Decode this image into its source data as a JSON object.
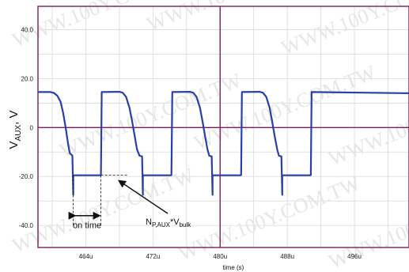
{
  "chart_data": {
    "type": "line",
    "xlabel": "time (s)",
    "ylabel": "VAUX, V",
    "ylabel_main": "V",
    "ylabel_sub": "AUX",
    "ylabel_unit": ", V",
    "x_ticks": [
      "464u",
      "472u",
      "480u",
      "488u",
      "496u"
    ],
    "x_tick_values": [
      464,
      472,
      480,
      488,
      496
    ],
    "y_ticks": [
      "40.0",
      "20.0",
      "0",
      "-20.0",
      "-40.0"
    ],
    "y_tick_values": [
      40,
      20,
      0,
      -20,
      -40
    ],
    "xlim": [
      458.3,
      502.5
    ],
    "ylim": [
      -49,
      49.5
    ],
    "grid": true,
    "colors": {
      "trace": "#2b3fa8",
      "axes": "#7a1f5c",
      "grid": "#d9d9d9",
      "annotation": "#111111"
    },
    "series": [
      {
        "values": [
          [
            458.3,
            14.5
          ],
          [
            459.8,
            14.5
          ],
          [
            460.2,
            14.1
          ],
          [
            460.6,
            13.0
          ],
          [
            461.0,
            10.5
          ],
          [
            461.3,
            6.0
          ],
          [
            461.6,
            0.0
          ],
          [
            461.9,
            -7.0
          ],
          [
            462.1,
            -10.5
          ],
          [
            462.4,
            -11.5
          ],
          [
            462.5,
            -27.5
          ],
          [
            462.5,
            -19.5
          ],
          [
            464.5,
            -19.5
          ],
          [
            464.6,
            -19.5
          ],
          [
            465.7,
            -19.5
          ],
          [
            465.8,
            -19.4
          ],
          [
            465.9,
            14.5
          ],
          [
            468.0,
            14.6
          ],
          [
            468.4,
            14.2
          ],
          [
            468.8,
            12.5
          ],
          [
            469.2,
            8.0
          ],
          [
            469.5,
            3.0
          ],
          [
            469.8,
            -3.0
          ],
          [
            470.1,
            -9.0
          ],
          [
            470.4,
            -11.5
          ],
          [
            470.7,
            -11.8
          ],
          [
            470.8,
            -27.5
          ],
          [
            470.8,
            -19.5
          ],
          [
            474.1,
            -19.5
          ],
          [
            474.2,
            -19.4
          ],
          [
            474.3,
            14.5
          ],
          [
            476.4,
            14.6
          ],
          [
            476.8,
            14.2
          ],
          [
            477.2,
            12.5
          ],
          [
            477.6,
            8.0
          ],
          [
            477.9,
            2.5
          ],
          [
            478.2,
            -3.5
          ],
          [
            478.5,
            -9.0
          ],
          [
            478.7,
            -11.5
          ],
          [
            479.0,
            -11.8
          ],
          [
            479.1,
            -27.5
          ],
          [
            479.1,
            -19.5
          ],
          [
            482.4,
            -19.5
          ],
          [
            482.5,
            -19.4
          ],
          [
            482.6,
            14.5
          ],
          [
            484.7,
            14.6
          ],
          [
            485.1,
            14.2
          ],
          [
            485.5,
            12.5
          ],
          [
            485.9,
            8.0
          ],
          [
            486.2,
            2.5
          ],
          [
            486.5,
            -3.5
          ],
          [
            486.8,
            -9.0
          ],
          [
            487.0,
            -11.5
          ],
          [
            487.3,
            -11.8
          ],
          [
            487.4,
            -27.5
          ],
          [
            487.4,
            -19.5
          ],
          [
            490.7,
            -19.5
          ],
          [
            490.8,
            -19.4
          ],
          [
            490.9,
            14.5
          ],
          [
            502.5,
            14.0
          ]
        ]
      }
    ],
    "annotations": {
      "on_time_label": "on time",
      "np_main": "N",
      "np_sub": "P,AUX",
      "np_mid": "*V",
      "np_sub2": "bulk",
      "on_time_span": [
        462.5,
        465.8
      ],
      "on_time_level": -36,
      "np_level": -19.5,
      "np_arrow_target": [
        465.9,
        -20.5
      ]
    },
    "watermark": "WWW.100Y.COM.TW"
  }
}
